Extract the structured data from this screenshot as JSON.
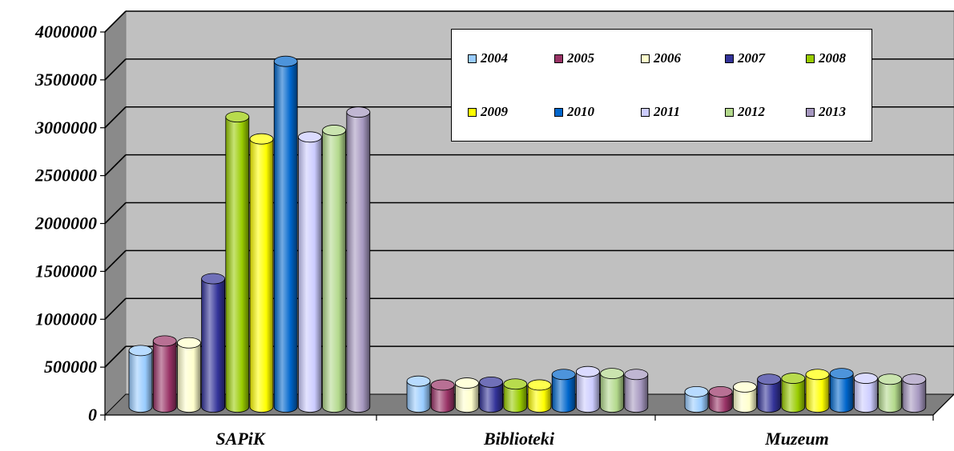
{
  "chart_data": {
    "type": "bar",
    "categories": [
      "SAPiK",
      "Biblioteki",
      "Muzeum"
    ],
    "ylim": [
      0,
      4000000
    ],
    "yticks": [
      0,
      500000,
      1000000,
      1500000,
      2000000,
      2500000,
      3000000,
      3500000,
      4000000
    ],
    "ytick_labels": [
      "0",
      "500000",
      "1000000",
      "1500000",
      "2000000",
      "2500000",
      "3000000",
      "3500000",
      "4000000"
    ],
    "grid": true,
    "legend_position": "top-right",
    "series": [
      {
        "name": "2004",
        "color": "#99ccff",
        "values": [
          590000,
          270000,
          160000
        ]
      },
      {
        "name": "2005",
        "color": "#993366",
        "values": [
          690000,
          230000,
          160000
        ]
      },
      {
        "name": "2006",
        "color": "#ffffcc",
        "values": [
          670000,
          250000,
          210000
        ]
      },
      {
        "name": "2007",
        "color": "#333399",
        "values": [
          1340000,
          260000,
          290000
        ]
      },
      {
        "name": "2008",
        "color": "#99cc00",
        "values": [
          3030000,
          240000,
          300000
        ]
      },
      {
        "name": "2009",
        "color": "#ffff00",
        "values": [
          2800000,
          230000,
          340000
        ]
      },
      {
        "name": "2010",
        "color": "#0066cc",
        "values": [
          3610000,
          340000,
          350000
        ]
      },
      {
        "name": "2011",
        "color": "#ccccff",
        "values": [
          2820000,
          370000,
          300000
        ]
      },
      {
        "name": "2012",
        "color": "#b3d98c",
        "values": [
          2890000,
          350000,
          290000
        ]
      },
      {
        "name": "2013",
        "color": "#a597bf",
        "values": [
          3080000,
          340000,
          290000
        ]
      }
    ]
  }
}
